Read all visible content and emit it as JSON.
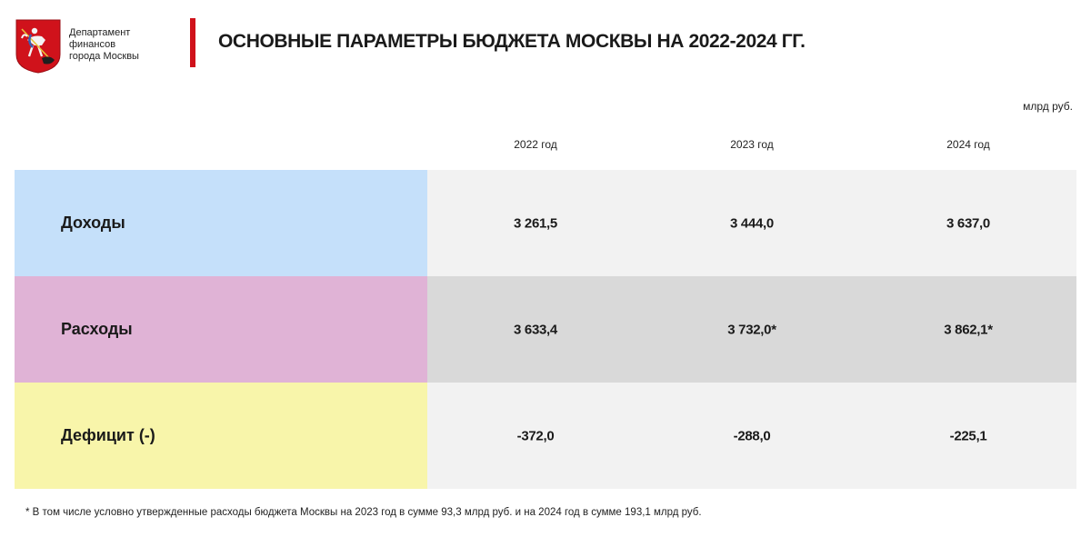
{
  "header": {
    "department_lines": [
      "Департамент",
      "финансов",
      "города Москвы"
    ],
    "title": "ОСНОВНЫЕ ПАРАМЕТРЫ БЮДЖЕТА МОСКВЫ НА 2022-2024 ГГ.",
    "logo_icon": "moscow-coat-of-arms-icon",
    "accent_color": "#d0121b"
  },
  "table": {
    "unit": "млрд руб.",
    "years": [
      "2022 год",
      "2023 год",
      "2024 год"
    ],
    "rows": [
      {
        "label": "Доходы",
        "values": [
          "3 261,5",
          "3 444,0",
          "3 637,0"
        ],
        "label_color": "#c5e0fa",
        "values_color": "#f2f2f2"
      },
      {
        "label": "Расходы",
        "values": [
          "3 633,4",
          "3 732,0*",
          "3 862,1*"
        ],
        "label_color": "#e0b3d6",
        "values_color": "#d9d9d9"
      },
      {
        "label": "Дефицит (-)",
        "values": [
          "-372,0",
          "-288,0",
          "-225,1"
        ],
        "label_color": "#f8f5aa",
        "values_color": "#f2f2f2"
      }
    ]
  },
  "footnote": "* В том числе условно утвержденные расходы бюджета Москвы на 2023 год в сумме 93,3 млрд руб. и на 2024 год в сумме 193,1 млрд руб."
}
